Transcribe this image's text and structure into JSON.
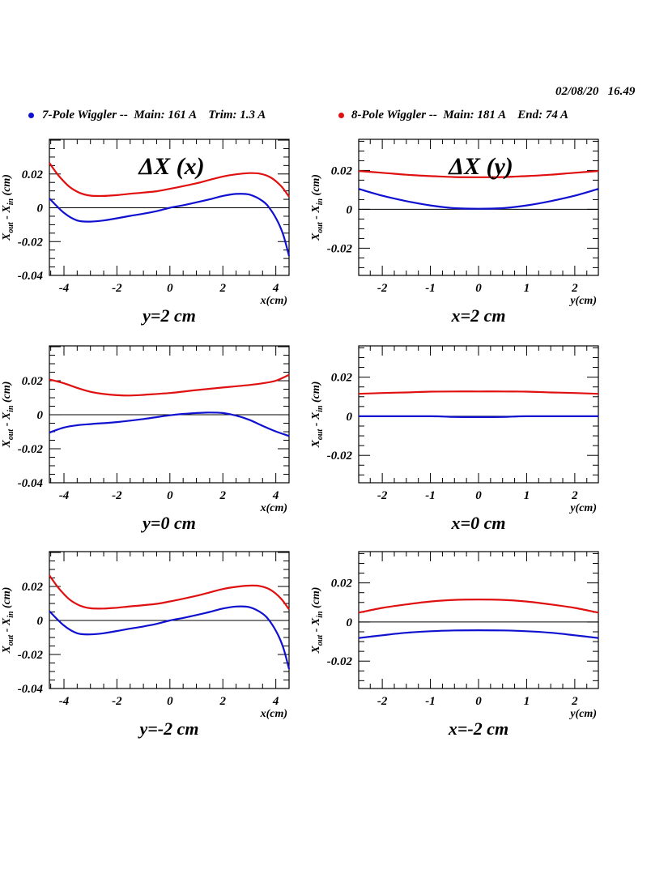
{
  "header": {
    "timestamp": "02/08/20   16.49",
    "legend": [
      {
        "label": "7-Pole Wiggler --  Main: 161 A    Trim: 1.3 A",
        "color": "#1010d0"
      },
      {
        "label": "8-Pole Wiggler --  Main: 181 A    End: 74 A",
        "color": "#e01010"
      }
    ]
  },
  "chart_data": [
    {
      "type": "line",
      "id": "dx-x-y2",
      "title": "ΔX (x)",
      "subtitle": "y=2 cm",
      "xlabel": "x(cm)",
      "ylabel": "X_out - X_in (cm)",
      "xlim": [
        -4.55,
        4.5
      ],
      "ylim": [
        -0.04,
        0.0405
      ],
      "xticks": [
        -4,
        -2,
        0,
        2,
        4
      ],
      "yticks": [
        -0.04,
        -0.02,
        0,
        0.02
      ],
      "ytick_labels": [
        "-0.04",
        "-0.02",
        "0",
        "0.02"
      ],
      "xtick_labels": [
        "-4",
        "-2",
        "0",
        "2",
        "4"
      ],
      "series": [
        {
          "name": "7-Pole Wiggler",
          "color": "#1010d0",
          "x": [
            -4.55,
            -4.0,
            -3.5,
            -3.0,
            -2.5,
            -2.0,
            -1.5,
            -1.0,
            -0.5,
            0.0,
            0.5,
            1.0,
            1.5,
            2.0,
            2.5,
            3.0,
            3.5,
            3.8,
            4.1,
            4.3,
            4.5
          ],
          "y": [
            0.0055,
            -0.003,
            -0.0075,
            -0.0082,
            -0.0075,
            -0.0062,
            -0.0048,
            -0.0035,
            -0.002,
            0.0,
            0.0015,
            0.0032,
            0.005,
            0.007,
            0.0082,
            0.0078,
            0.004,
            -0.001,
            -0.009,
            -0.017,
            -0.0285
          ]
        },
        {
          "name": "8-Pole Wiggler",
          "color": "#e01010",
          "x": [
            -4.55,
            -4.2,
            -3.8,
            -3.4,
            -3.0,
            -2.5,
            -2.0,
            -1.5,
            -1.0,
            -0.5,
            0.0,
            0.5,
            1.0,
            1.5,
            2.0,
            2.5,
            3.0,
            3.4,
            3.8,
            4.2,
            4.5
          ],
          "y": [
            0.0265,
            0.019,
            0.0125,
            0.0088,
            0.0072,
            0.007,
            0.0075,
            0.0083,
            0.009,
            0.0098,
            0.0112,
            0.0128,
            0.0145,
            0.0165,
            0.0185,
            0.0198,
            0.0205,
            0.0202,
            0.018,
            0.0128,
            0.0065
          ]
        }
      ]
    },
    {
      "type": "line",
      "id": "dx-y-x2",
      "title": "ΔX (y)",
      "subtitle": "x=2 cm",
      "xlabel": "y(cm)",
      "ylabel": "X_out - X_in (cm)",
      "xlim": [
        -2.49,
        2.49
      ],
      "ylim": [
        -0.034,
        0.036
      ],
      "xticks": [
        -2,
        -1,
        0,
        1,
        2
      ],
      "yticks": [
        -0.02,
        0,
        0.02
      ],
      "ytick_labels": [
        "-0.02",
        "0",
        "0.02"
      ],
      "xtick_labels": [
        "-2",
        "-1",
        "0",
        "1",
        "2"
      ],
      "series": [
        {
          "name": "7-Pole Wiggler",
          "color": "#1010d0",
          "x": [
            -2.49,
            -2.0,
            -1.5,
            -1.0,
            -0.5,
            0.0,
            0.5,
            1.0,
            1.5,
            2.0,
            2.49
          ],
          "y": [
            0.0105,
            0.007,
            0.0042,
            0.002,
            0.0006,
            0.0003,
            0.0006,
            0.002,
            0.0042,
            0.007,
            0.0105
          ]
        },
        {
          "name": "8-Pole Wiggler",
          "color": "#e01010",
          "x": [
            -2.49,
            -2.0,
            -1.5,
            -1.0,
            -0.5,
            0.0,
            0.5,
            1.0,
            1.5,
            2.0,
            2.49
          ],
          "y": [
            0.0197,
            0.0188,
            0.0178,
            0.0171,
            0.0166,
            0.0165,
            0.0166,
            0.0171,
            0.0178,
            0.0188,
            0.0197
          ]
        }
      ]
    },
    {
      "type": "line",
      "id": "dx-x-y0",
      "title": "",
      "subtitle": "y=0 cm",
      "xlabel": "x(cm)",
      "ylabel": "X_out - X_in (cm)",
      "xlim": [
        -4.55,
        4.5
      ],
      "ylim": [
        -0.04,
        0.0405
      ],
      "xticks": [
        -4,
        -2,
        0,
        2,
        4
      ],
      "yticks": [
        -0.04,
        -0.02,
        0,
        0.02
      ],
      "ytick_labels": [
        "-0.04",
        "-0.02",
        "0",
        "0.02"
      ],
      "xtick_labels": [
        "-4",
        "-2",
        "0",
        "2",
        "4"
      ],
      "series": [
        {
          "name": "7-Pole Wiggler",
          "color": "#1010d0",
          "x": [
            -4.55,
            -4.0,
            -3.5,
            -3.0,
            -2.0,
            -1.0,
            0.0,
            0.5,
            1.0,
            1.5,
            2.0,
            2.5,
            3.0,
            3.5,
            4.0,
            4.5
          ],
          "y": [
            -0.0105,
            -0.0075,
            -0.0062,
            -0.0055,
            -0.0043,
            -0.0025,
            -0.0003,
            0.0005,
            0.001,
            0.0013,
            0.001,
            -0.0005,
            -0.003,
            -0.0065,
            -0.0098,
            -0.0125
          ]
        },
        {
          "name": "8-Pole Wiggler",
          "color": "#e01010",
          "x": [
            -4.55,
            -4.0,
            -3.5,
            -3.0,
            -2.5,
            -2.0,
            -1.5,
            -1.0,
            0.0,
            1.0,
            2.0,
            3.0,
            3.5,
            4.0,
            4.5
          ],
          "y": [
            0.0208,
            0.0185,
            0.0158,
            0.0135,
            0.0122,
            0.0115,
            0.0113,
            0.0117,
            0.0128,
            0.0145,
            0.016,
            0.0175,
            0.0185,
            0.02,
            0.0235
          ]
        }
      ]
    },
    {
      "type": "line",
      "id": "dx-y-x0",
      "title": "",
      "subtitle": "x=0 cm",
      "xlabel": "y(cm)",
      "ylabel": "X_out - X_in (cm)",
      "xlim": [
        -2.49,
        2.49
      ],
      "ylim": [
        -0.034,
        0.036
      ],
      "xticks": [
        -2,
        -1,
        0,
        1,
        2
      ],
      "yticks": [
        -0.02,
        0,
        0.02
      ],
      "ytick_labels": [
        "-0.02",
        "0",
        "0.02"
      ],
      "xtick_labels": [
        "-2",
        "-1",
        "0",
        "1",
        "2"
      ],
      "series": [
        {
          "name": "7-Pole Wiggler",
          "color": "#1010d0",
          "x": [
            -2.49,
            -1.0,
            -0.6,
            0.0,
            0.6,
            1.0,
            2.49
          ],
          "y": [
            0.0,
            0.0,
            -0.0003,
            -0.0004,
            -0.0003,
            0.0,
            0.0
          ]
        },
        {
          "name": "8-Pole Wiggler",
          "color": "#e01010",
          "x": [
            -2.49,
            -2.0,
            -1.5,
            -1.0,
            -0.5,
            0.0,
            0.5,
            1.0,
            1.5,
            2.0,
            2.49
          ],
          "y": [
            0.0115,
            0.0119,
            0.0122,
            0.0126,
            0.0127,
            0.0127,
            0.0127,
            0.0126,
            0.0122,
            0.0119,
            0.0115
          ]
        }
      ]
    },
    {
      "type": "line",
      "id": "dx-x-ym2",
      "title": "",
      "subtitle": "y=-2 cm",
      "xlabel": "x(cm)",
      "ylabel": "X_out - X_in (cm)",
      "xlim": [
        -4.55,
        4.5
      ],
      "ylim": [
        -0.04,
        0.0405
      ],
      "xticks": [
        -4,
        -2,
        0,
        2,
        4
      ],
      "yticks": [
        -0.04,
        -0.02,
        0,
        0.02
      ],
      "ytick_labels": [
        "-0.04",
        "-0.02",
        "0",
        "0.02"
      ],
      "xtick_labels": [
        "-4",
        "-2",
        "0",
        "2",
        "4"
      ],
      "series": [
        {
          "name": "7-Pole Wiggler",
          "color": "#1010d0",
          "x": [
            -4.55,
            -4.0,
            -3.5,
            -3.0,
            -2.5,
            -2.0,
            -1.5,
            -1.0,
            -0.5,
            0.0,
            0.5,
            1.0,
            1.5,
            2.0,
            2.5,
            3.0,
            3.5,
            3.8,
            4.1,
            4.3,
            4.5
          ],
          "y": [
            0.0055,
            -0.003,
            -0.0075,
            -0.0082,
            -0.0075,
            -0.0062,
            -0.0048,
            -0.0035,
            -0.002,
            0.0,
            0.0015,
            0.0032,
            0.005,
            0.007,
            0.0082,
            0.0078,
            0.004,
            -0.001,
            -0.009,
            -0.017,
            -0.0285
          ]
        },
        {
          "name": "8-Pole Wiggler",
          "color": "#e01010",
          "x": [
            -4.55,
            -4.2,
            -3.8,
            -3.4,
            -3.0,
            -2.5,
            -2.0,
            -1.5,
            -1.0,
            -0.5,
            0.0,
            0.5,
            1.0,
            1.5,
            2.0,
            2.5,
            3.0,
            3.4,
            3.8,
            4.2,
            4.5
          ],
          "y": [
            0.0265,
            0.019,
            0.0125,
            0.0088,
            0.0072,
            0.007,
            0.0075,
            0.0083,
            0.009,
            0.0098,
            0.0112,
            0.0128,
            0.0145,
            0.0165,
            0.0185,
            0.0198,
            0.0205,
            0.0202,
            0.018,
            0.0128,
            0.0065
          ]
        }
      ]
    },
    {
      "type": "line",
      "id": "dx-y-xm2",
      "title": "",
      "subtitle": "x=-2 cm",
      "xlabel": "y(cm)",
      "ylabel": "X_out - X_in (cm)",
      "xlim": [
        -2.49,
        2.49
      ],
      "ylim": [
        -0.034,
        0.036
      ],
      "xticks": [
        -2,
        -1,
        0,
        1,
        2
      ],
      "yticks": [
        -0.02,
        0,
        0.02
      ],
      "ytick_labels": [
        "-0.02",
        "0",
        "0.02"
      ],
      "xtick_labels": [
        "-2",
        "-1",
        "0",
        "1",
        "2"
      ],
      "series": [
        {
          "name": "7-Pole Wiggler",
          "color": "#1010d0",
          "x": [
            -2.49,
            -2.0,
            -1.5,
            -1.0,
            -0.5,
            0.0,
            0.5,
            1.0,
            1.5,
            2.0,
            2.49
          ],
          "y": [
            -0.0082,
            -0.0068,
            -0.0055,
            -0.0047,
            -0.0043,
            -0.0042,
            -0.0043,
            -0.0047,
            -0.0055,
            -0.0068,
            -0.0082
          ]
        },
        {
          "name": "8-Pole Wiggler",
          "color": "#e01010",
          "x": [
            -2.49,
            -2.0,
            -1.5,
            -1.0,
            -0.5,
            0.0,
            0.5,
            1.0,
            1.5,
            2.0,
            2.49
          ],
          "y": [
            0.0048,
            0.0072,
            0.009,
            0.0105,
            0.0113,
            0.0115,
            0.0113,
            0.0105,
            0.009,
            0.0072,
            0.0048
          ]
        }
      ]
    }
  ]
}
